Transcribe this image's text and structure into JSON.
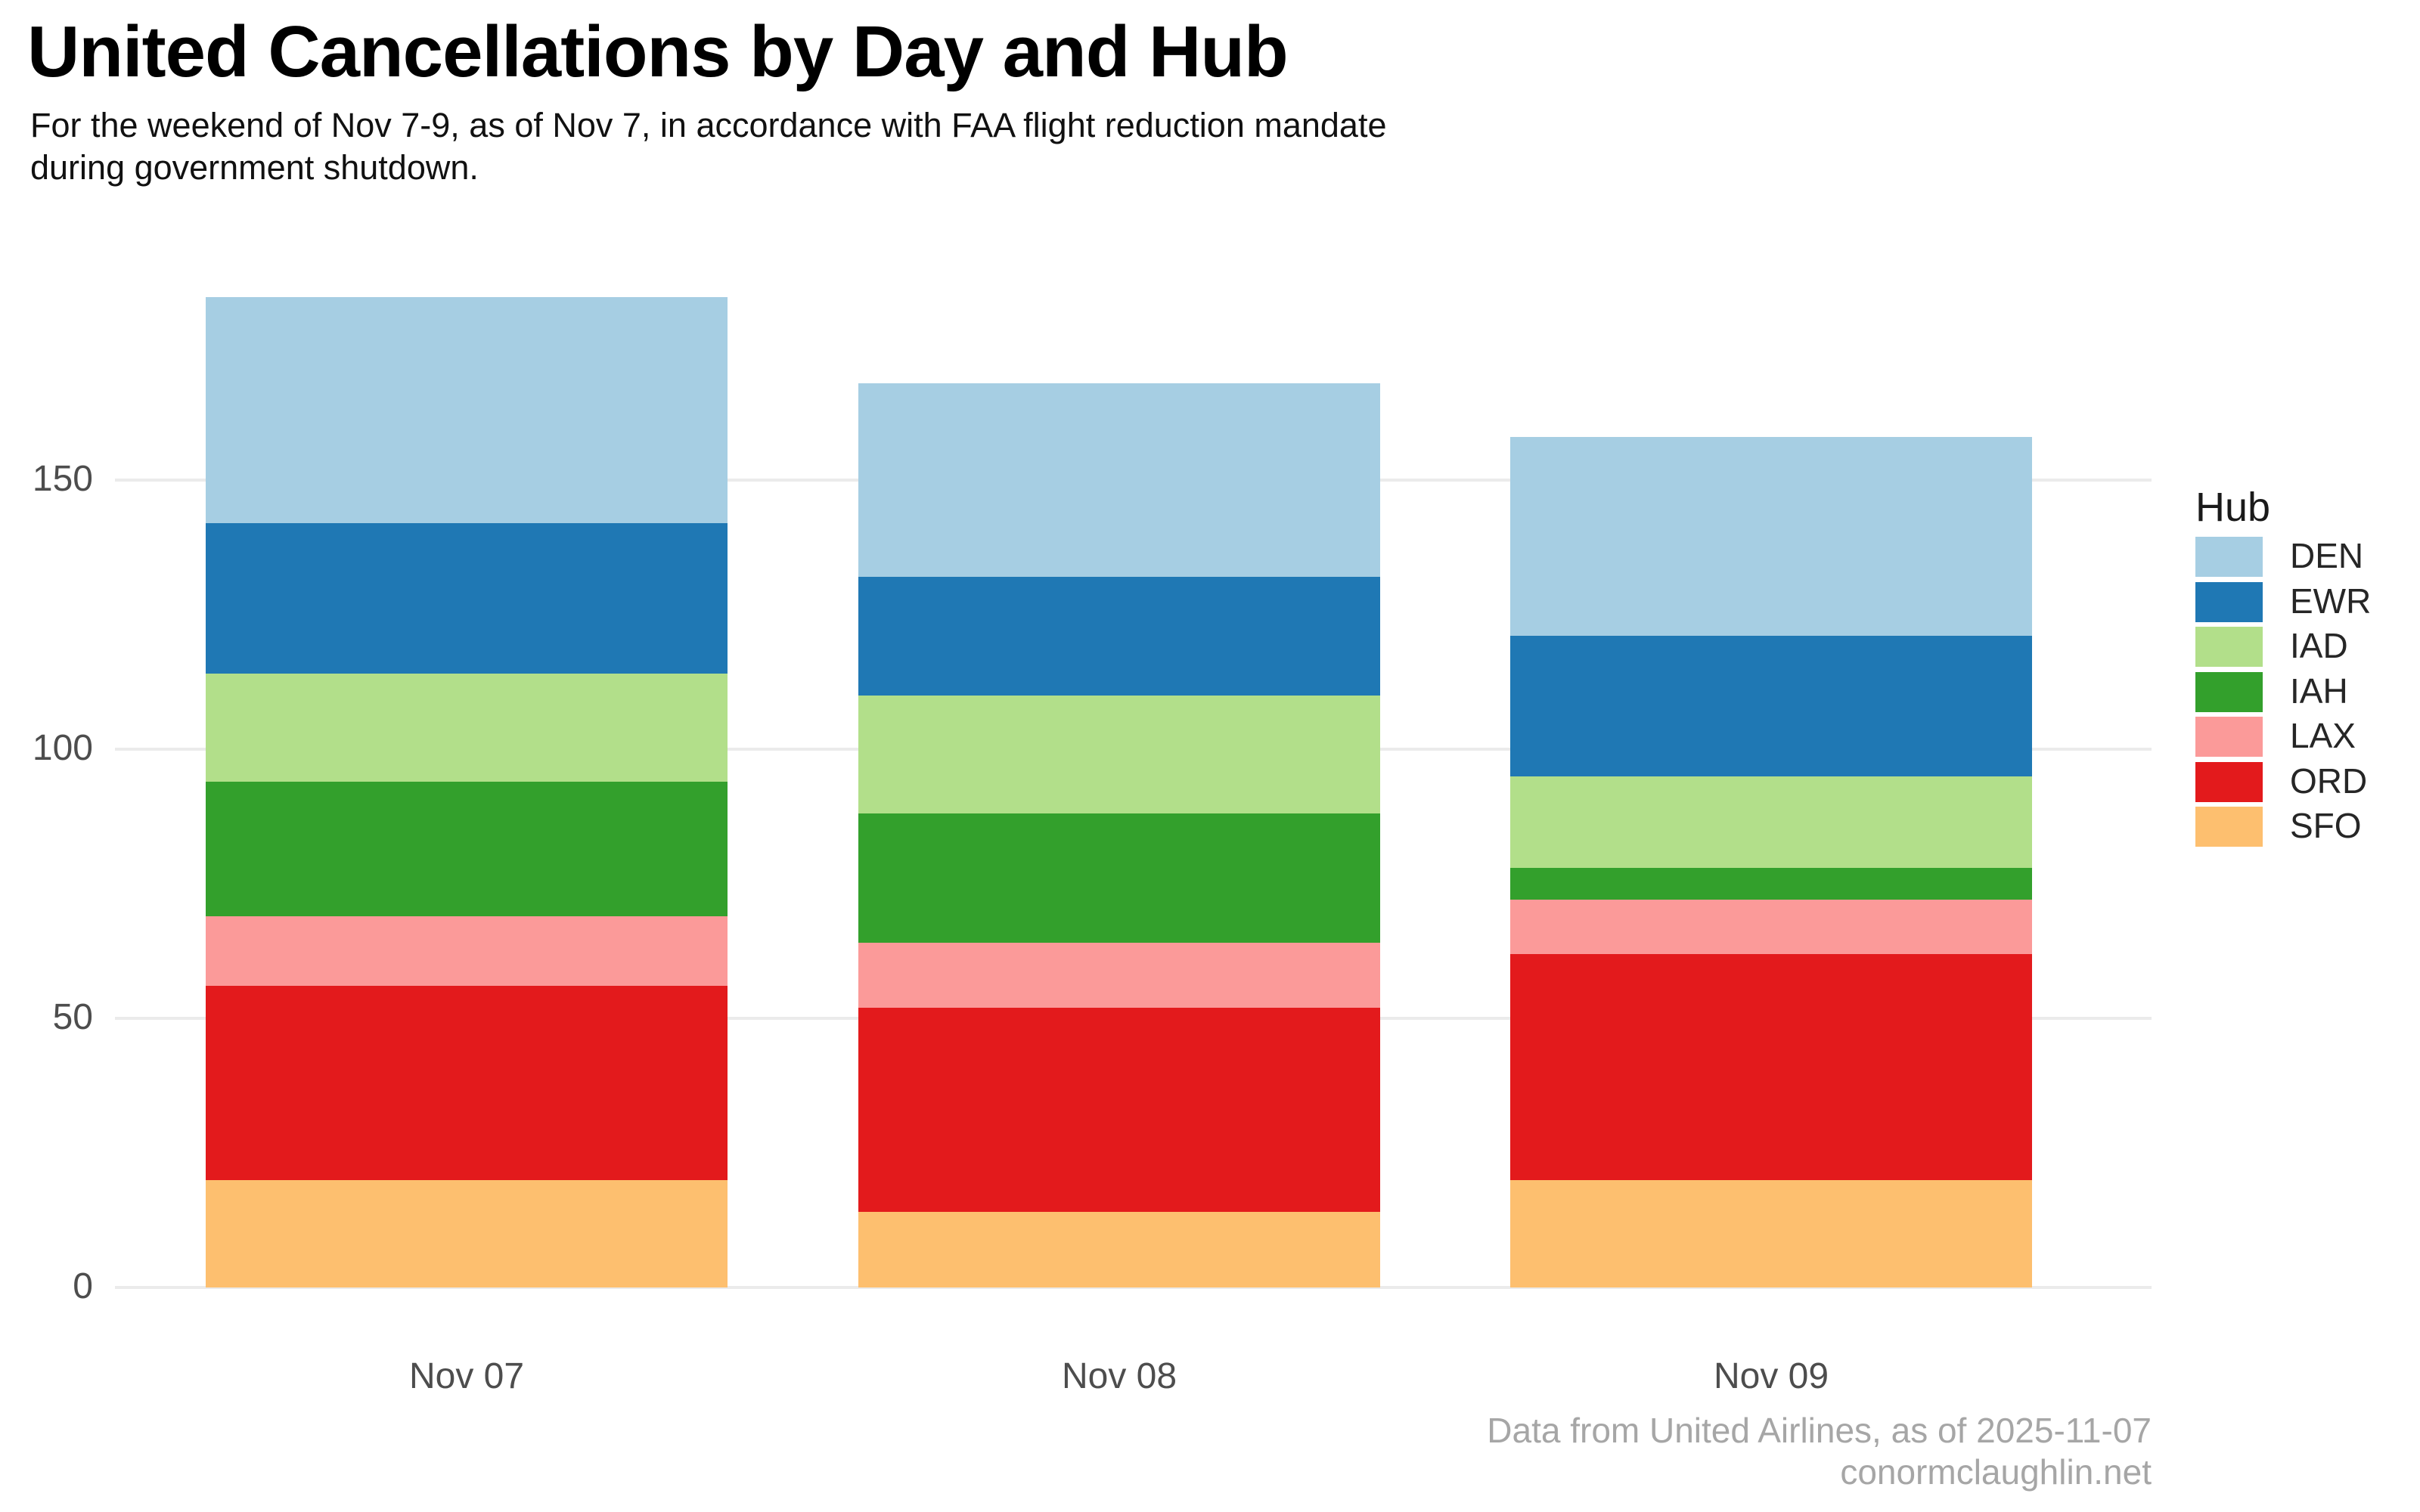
{
  "title": "United Cancellations by Day and Hub",
  "subtitle_lines": [
    "For the weekend of Nov 7-9, as of Nov 7, in accordance with FAA flight reduction mandate",
    "during government shutdown."
  ],
  "y_axis": {
    "ticks": [
      0,
      50,
      100,
      150
    ]
  },
  "legend": {
    "title": "Hub",
    "entries": [
      {
        "label": "DEN",
        "color": "#a6cee3"
      },
      {
        "label": "EWR",
        "color": "#1f78b4"
      },
      {
        "label": "IAD",
        "color": "#b2df8a"
      },
      {
        "label": "IAH",
        "color": "#33a02c"
      },
      {
        "label": "LAX",
        "color": "#fb9a99"
      },
      {
        "label": "ORD",
        "color": "#e31a1c"
      },
      {
        "label": "SFO",
        "color": "#fdbf6f"
      }
    ]
  },
  "chart_data": {
    "type": "bar",
    "stacked": true,
    "title": "United Cancellations by Day and Hub",
    "categories": [
      "Nov 07",
      "Nov 08",
      "Nov 09"
    ],
    "series": [
      {
        "name": "DEN",
        "color": "#a6cee3",
        "values": [
          42,
          36,
          37
        ]
      },
      {
        "name": "EWR",
        "color": "#1f78b4",
        "values": [
          28,
          22,
          26
        ]
      },
      {
        "name": "IAD",
        "color": "#b2df8a",
        "values": [
          20,
          22,
          17
        ]
      },
      {
        "name": "IAH",
        "color": "#33a02c",
        "values": [
          25,
          24,
          6
        ]
      },
      {
        "name": "LAX",
        "color": "#fb9a99",
        "values": [
          13,
          12,
          10
        ]
      },
      {
        "name": "ORD",
        "color": "#e31a1c",
        "values": [
          36,
          38,
          42
        ]
      },
      {
        "name": "SFO",
        "color": "#fdbf6f",
        "values": [
          20,
          14,
          20
        ]
      }
    ],
    "totals": [
      184,
      168,
      158
    ],
    "stack_order_bottom_to_top": [
      "SFO",
      "ORD",
      "LAX",
      "IAH",
      "IAD",
      "EWR",
      "DEN"
    ],
    "xlabel": "",
    "ylabel": "",
    "ylim": [
      0,
      184
    ],
    "grid": "horizontal",
    "legend_position": "right"
  },
  "footer": {
    "line1": "Data from United Airlines, as of 2025-11-07",
    "line2": "conormclaughlin.net"
  }
}
